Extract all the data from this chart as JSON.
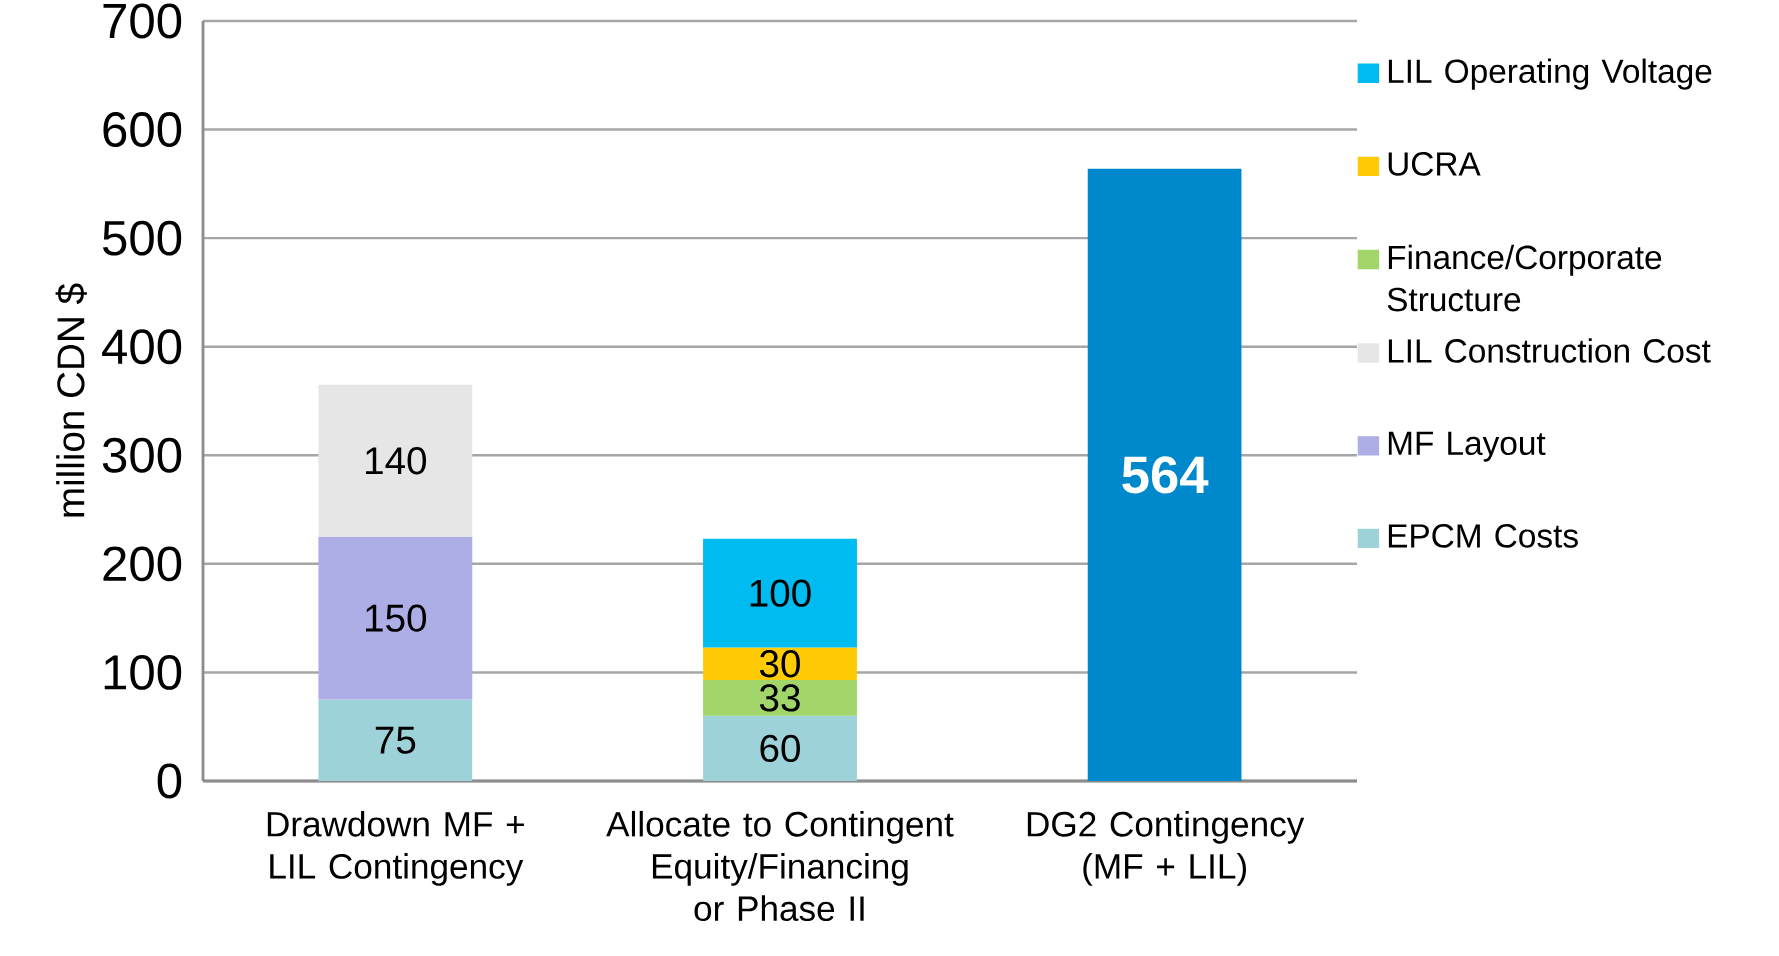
{
  "chart_data": {
    "type": "bar",
    "stacked": true,
    "ylabel": "million CDN $",
    "categories": [
      "Drawdown MF + LIL Contingency",
      "Allocate to Contingent Equity/Financing or Phase II",
      "DG2 Contingency (MF + LIL)"
    ],
    "series": [
      {
        "name": "EPCM Costs",
        "color": "#9dd2d8",
        "values": [
          75,
          60,
          null
        ]
      },
      {
        "name": "MF Layout",
        "color": "#adaee6",
        "values": [
          150,
          null,
          null
        ]
      },
      {
        "name": "LIL Construction Cost",
        "color": "#e6e6e6",
        "values": [
          140,
          null,
          null
        ]
      },
      {
        "name": "Finance/Corporate Structure",
        "color": "#a2d66a",
        "values": [
          null,
          33,
          null
        ]
      },
      {
        "name": "UCRA",
        "color": "#ffcb05",
        "values": [
          null,
          30,
          null
        ]
      },
      {
        "name": "LIL Operating Voltage",
        "color": "#00bbef",
        "values": [
          null,
          100,
          null
        ]
      },
      {
        "color": "#0088cc",
        "values": [
          null,
          null,
          564
        ]
      }
    ],
    "ylim": [
      0,
      700
    ],
    "yticks": [
      0,
      100,
      200,
      300,
      400,
      500,
      600,
      700
    ],
    "grid": "y",
    "legend": "right",
    "data_labels": true
  }
}
